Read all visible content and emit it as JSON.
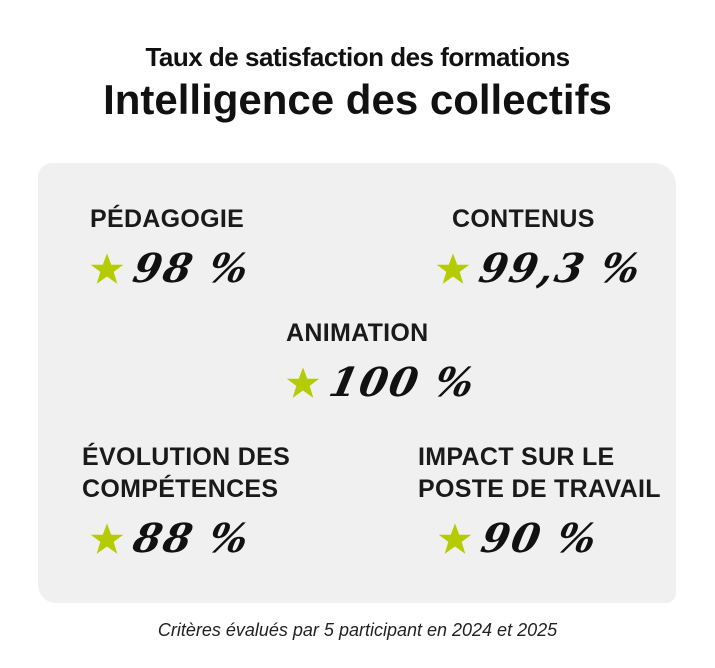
{
  "header": {
    "subtitle": "Taux de satisfaction des formations",
    "title": "Intelligence des collectifs"
  },
  "colors": {
    "star": "#b5cc00",
    "panel": "#f0f0f0"
  },
  "metrics": [
    {
      "label": "PÉDAGOGIE",
      "value": "98 %"
    },
    {
      "label": "CONTENUS",
      "value": "99,3 %"
    },
    {
      "label": "ANIMATION",
      "value": "100 %"
    },
    {
      "label": "ÉVOLUTION DES COMPÉTENCES",
      "value": "88 %"
    },
    {
      "label": "IMPACT SUR LE POSTE DE TRAVAIL",
      "value": "90 %"
    }
  ],
  "footnote": "Critères évalués par 5 participant en 2024 et 2025"
}
